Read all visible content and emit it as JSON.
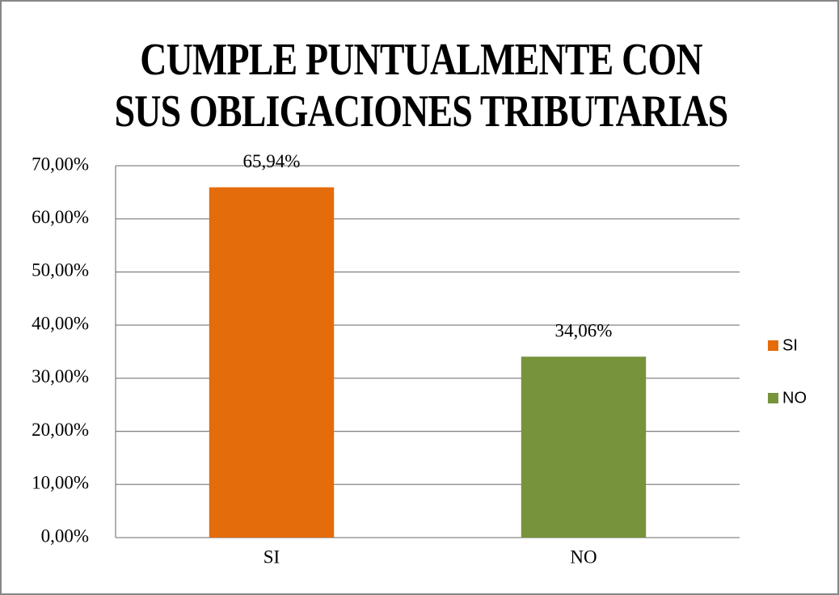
{
  "chart_data": {
    "type": "bar",
    "title": "CUMPLE PUNTUALMENTE  CON\nSUS OBLIGACIONES  TRIBUTARIAS",
    "categories": [
      "SI",
      "NO"
    ],
    "values": [
      65.94,
      34.06
    ],
    "value_labels": [
      "65,94%",
      "34,06%"
    ],
    "colors": [
      "#e46c0a",
      "#77933c"
    ],
    "ylim": [
      0,
      70
    ],
    "yticks": [
      {
        "value": 0,
        "label": "0,00%"
      },
      {
        "value": 10,
        "label": "10,00%"
      },
      {
        "value": 20,
        "label": "20,00%"
      },
      {
        "value": 30,
        "label": "30,00%"
      },
      {
        "value": 40,
        "label": "40,00%"
      },
      {
        "value": 50,
        "label": "50,00%"
      },
      {
        "value": 60,
        "label": "60,00%"
      },
      {
        "value": 70,
        "label": "70,00%"
      }
    ],
    "grid": true,
    "legend": "right"
  }
}
